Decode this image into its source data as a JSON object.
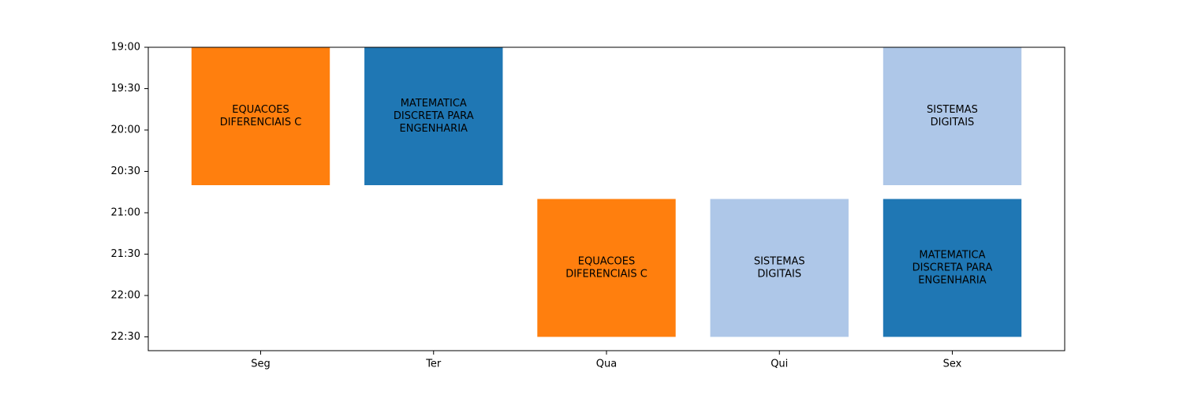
{
  "chart_data": {
    "type": "bar",
    "categories": [
      "Seg",
      "Ter",
      "Qua",
      "Qui",
      "Sex"
    ],
    "y_ticks": [
      "19:00",
      "19:30",
      "20:00",
      "20:30",
      "21:00",
      "21:30",
      "22:00",
      "22:30"
    ],
    "ylim": [
      "19:00",
      "22:40"
    ],
    "y_inverted": true,
    "grid": false,
    "blocks": [
      {
        "day": "Seg",
        "start": "19:00",
        "end": "20:40",
        "label_lines": [
          "EQUACOES",
          "DIFERENCIAIS C"
        ],
        "color": "#ff7f0e"
      },
      {
        "day": "Ter",
        "start": "19:00",
        "end": "20:40",
        "label_lines": [
          "MATEMATICA",
          "DISCRETA PARA",
          "ENGENHARIA"
        ],
        "color": "#1f77b4"
      },
      {
        "day": "Qua",
        "start": "20:50",
        "end": "22:30",
        "label_lines": [
          "EQUACOES",
          "DIFERENCIAIS C"
        ],
        "color": "#ff7f0e"
      },
      {
        "day": "Qui",
        "start": "20:50",
        "end": "22:30",
        "label_lines": [
          "SISTEMAS",
          "DIGITAIS"
        ],
        "color": "#aec7e8"
      },
      {
        "day": "Sex",
        "start": "19:00",
        "end": "20:40",
        "label_lines": [
          "SISTEMAS",
          "DIGITAIS"
        ],
        "color": "#aec7e8"
      },
      {
        "day": "Sex",
        "start": "20:50",
        "end": "22:30",
        "label_lines": [
          "MATEMATICA",
          "DISCRETA PARA",
          "ENGENHARIA"
        ],
        "color": "#1f77b4"
      }
    ]
  }
}
